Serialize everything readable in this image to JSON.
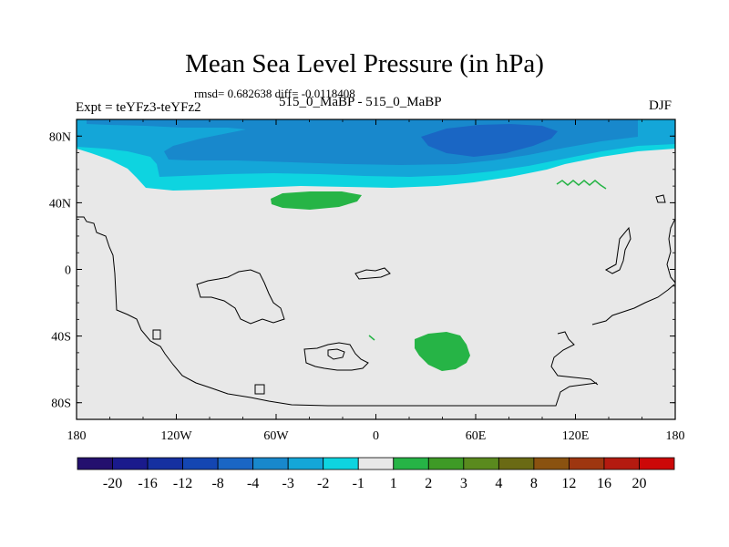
{
  "plot": {
    "title": "Mean Sea Level Pressure (in hPa)",
    "stats_text": "rmsd= 0.682638 diff= -0.0118408",
    "left_label": "Expt = teYFz3-teYFz2",
    "center_label": "515_0_MaBP - 515_0_MaBP",
    "right_label": "DJF"
  },
  "axes": {
    "lat_ticks": [
      {
        "value": 80,
        "label": "80N"
      },
      {
        "value": 40,
        "label": "40N"
      },
      {
        "value": 0,
        "label": "0"
      },
      {
        "value": -40,
        "label": "40S"
      },
      {
        "value": -80,
        "label": "80S"
      }
    ],
    "lon_ticks": [
      {
        "value": -180,
        "label": "180"
      },
      {
        "value": -120,
        "label": "120W"
      },
      {
        "value": -60,
        "label": "60W"
      },
      {
        "value": 0,
        "label": "0"
      },
      {
        "value": 60,
        "label": "60E"
      },
      {
        "value": 120,
        "label": "120E"
      },
      {
        "value": 180,
        "label": "180"
      }
    ],
    "lon_range": [
      -180,
      180
    ],
    "lat_range": [
      -90,
      90
    ]
  },
  "colorbar": {
    "labels": [
      "-20",
      "-16",
      "-12",
      "-8",
      "-4",
      "-3",
      "-2",
      "-1",
      "1",
      "2",
      "3",
      "4",
      "8",
      "12",
      "16",
      "20"
    ],
    "colors": [
      "#24106e",
      "#1a1a8c",
      "#1530a0",
      "#1446b2",
      "#1a66c4",
      "#1888cc",
      "#14a6d8",
      "#0ed4e0",
      "#e8e8e8",
      "#26b446",
      "#3e9a26",
      "#5a8a1e",
      "#6a6a14",
      "#8a5210",
      "#9e3610",
      "#b41a10",
      "#cc0808"
    ]
  },
  "map": {
    "background_color": "#e8e8e8",
    "land_color": "#e8e8e8",
    "coastline_color": "#000000"
  }
}
